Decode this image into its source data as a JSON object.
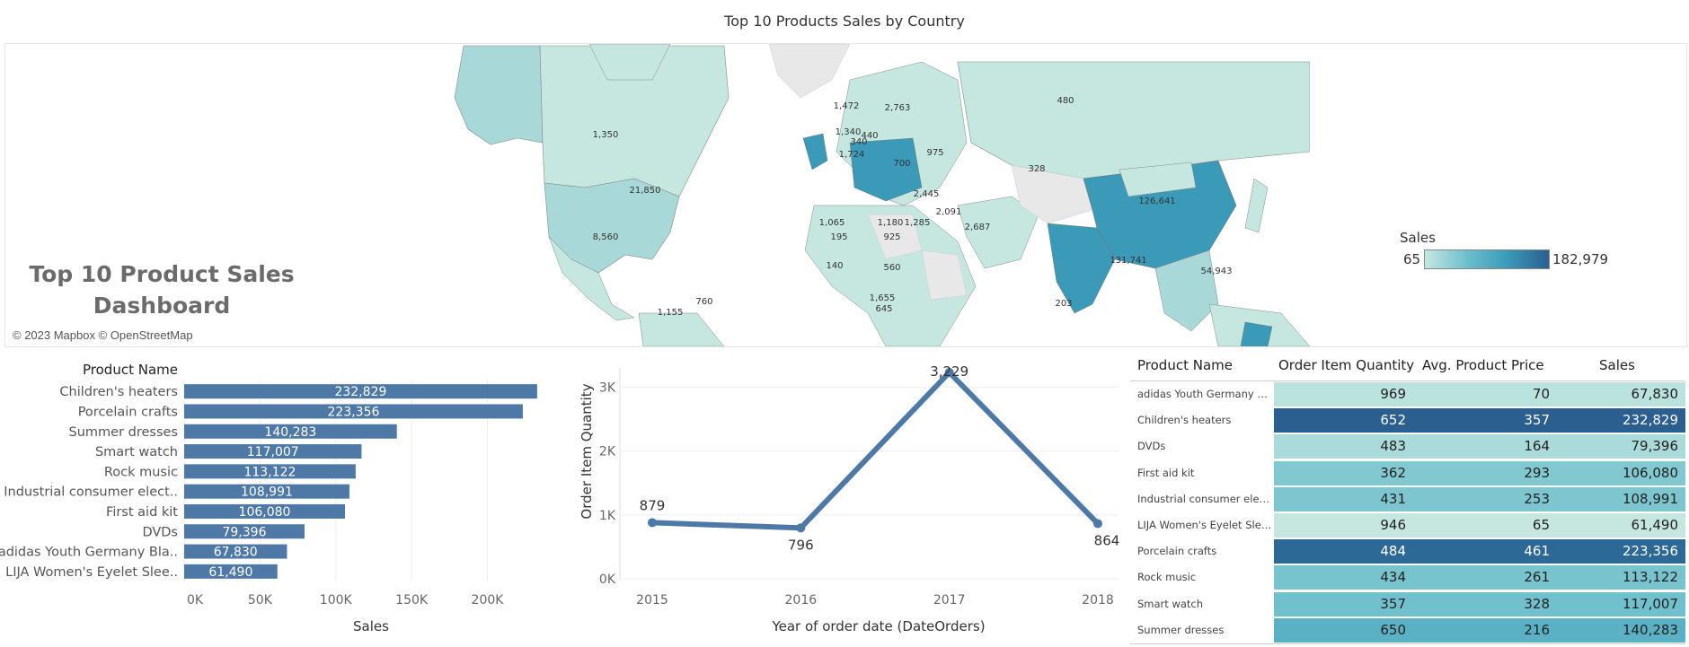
{
  "page_title": "Top 10 Products Sales by Country",
  "dashboard_title": "Top 10 Product Sales Dashboard",
  "map": {
    "attribution": "© 2023 Mapbox © OpenStreetMap",
    "legend": {
      "title": "Sales",
      "min": "65",
      "max": "182,979",
      "colors": [
        "#c5e7e0",
        "#6fbfcc",
        "#3a9ab8",
        "#2a5f8f"
      ]
    },
    "labels": [
      "1,350",
      "21,850",
      "8,560",
      "480",
      "328",
      "126,641",
      "131,741",
      "2,445",
      "1,180",
      "1,285",
      "2,091",
      "2,687",
      "54,943",
      "1,155",
      "760",
      "925",
      "560",
      "195",
      "140",
      "1,655",
      "645",
      "975",
      "700",
      "340",
      "1,472",
      "2,763",
      "1,340",
      "440",
      "1,724",
      "1,065",
      "203"
    ]
  },
  "chart_data": [
    {
      "type": "bar",
      "orientation": "horizontal",
      "title": "",
      "ylabel": "Product Name",
      "xlabel": "Sales",
      "categories": [
        "Children's heaters",
        "Porcelain crafts",
        "Summer dresses",
        "Smart watch",
        "Rock music",
        "Industrial consumer elect..",
        "First aid kit",
        "DVDs",
        "adidas Youth Germany Bla..",
        "LIJA Women's Eyelet Slee.."
      ],
      "values": [
        232829,
        223356,
        140283,
        117007,
        113122,
        108991,
        106080,
        79396,
        67830,
        61490
      ],
      "value_labels": [
        "232,829",
        "223,356",
        "140,283",
        "117,007",
        "113,122",
        "108,991",
        "106,080",
        "79,396",
        "67,830",
        "61,490"
      ],
      "xlim": [
        0,
        240000
      ],
      "xticks": [
        0,
        50000,
        100000,
        150000,
        200000
      ],
      "xtick_labels": [
        "0K",
        "50K",
        "100K",
        "150K",
        "200K"
      ],
      "color": "#4e79a7",
      "grid": true
    },
    {
      "type": "line",
      "title": "",
      "xlabel": "Year of order date (DateOrders)",
      "ylabel": "Order Item Quantity",
      "x": [
        "2015",
        "2016",
        "2017",
        "2018"
      ],
      "values": [
        879,
        796,
        3229,
        864
      ],
      "value_labels": [
        "879",
        "796",
        "3,229",
        "864"
      ],
      "ylim": [
        0,
        3300
      ],
      "yticks": [
        0,
        1000,
        2000,
        3000
      ],
      "ytick_labels": [
        "0K",
        "1K",
        "2K",
        "3K"
      ],
      "color": "#4e79a7",
      "grid": true
    },
    {
      "type": "table",
      "columns": [
        "Product Name",
        "Order Item Quantity",
        "Avg. Product Price",
        "Sales"
      ],
      "rows": [
        {
          "name": "adidas Youth Germany Blac..",
          "qty": "969",
          "price": "70",
          "sales": "67,830",
          "sales_value": 67830
        },
        {
          "name": "Children's heaters",
          "qty": "652",
          "price": "357",
          "sales": "232,829",
          "sales_value": 232829
        },
        {
          "name": "DVDs",
          "qty": "483",
          "price": "164",
          "sales": "79,396",
          "sales_value": 79396
        },
        {
          "name": "First aid kit",
          "qty": "362",
          "price": "293",
          "sales": "106,080",
          "sales_value": 106080
        },
        {
          "name": "Industrial consumer electro..",
          "qty": "431",
          "price": "253",
          "sales": "108,991",
          "sales_value": 108991
        },
        {
          "name": "LIJA Women's Eyelet Sleev..",
          "qty": "946",
          "price": "65",
          "sales": "61,490",
          "sales_value": 61490
        },
        {
          "name": "Porcelain crafts",
          "qty": "484",
          "price": "461",
          "sales": "223,356",
          "sales_value": 223356
        },
        {
          "name": "Rock music",
          "qty": "434",
          "price": "261",
          "sales": "113,122",
          "sales_value": 113122
        },
        {
          "name": "Smart watch",
          "qty": "357",
          "price": "328",
          "sales": "117,007",
          "sales_value": 117007
        },
        {
          "name": "Summer dresses",
          "qty": "650",
          "price": "216",
          "sales": "140,283",
          "sales_value": 140283
        }
      ]
    }
  ]
}
